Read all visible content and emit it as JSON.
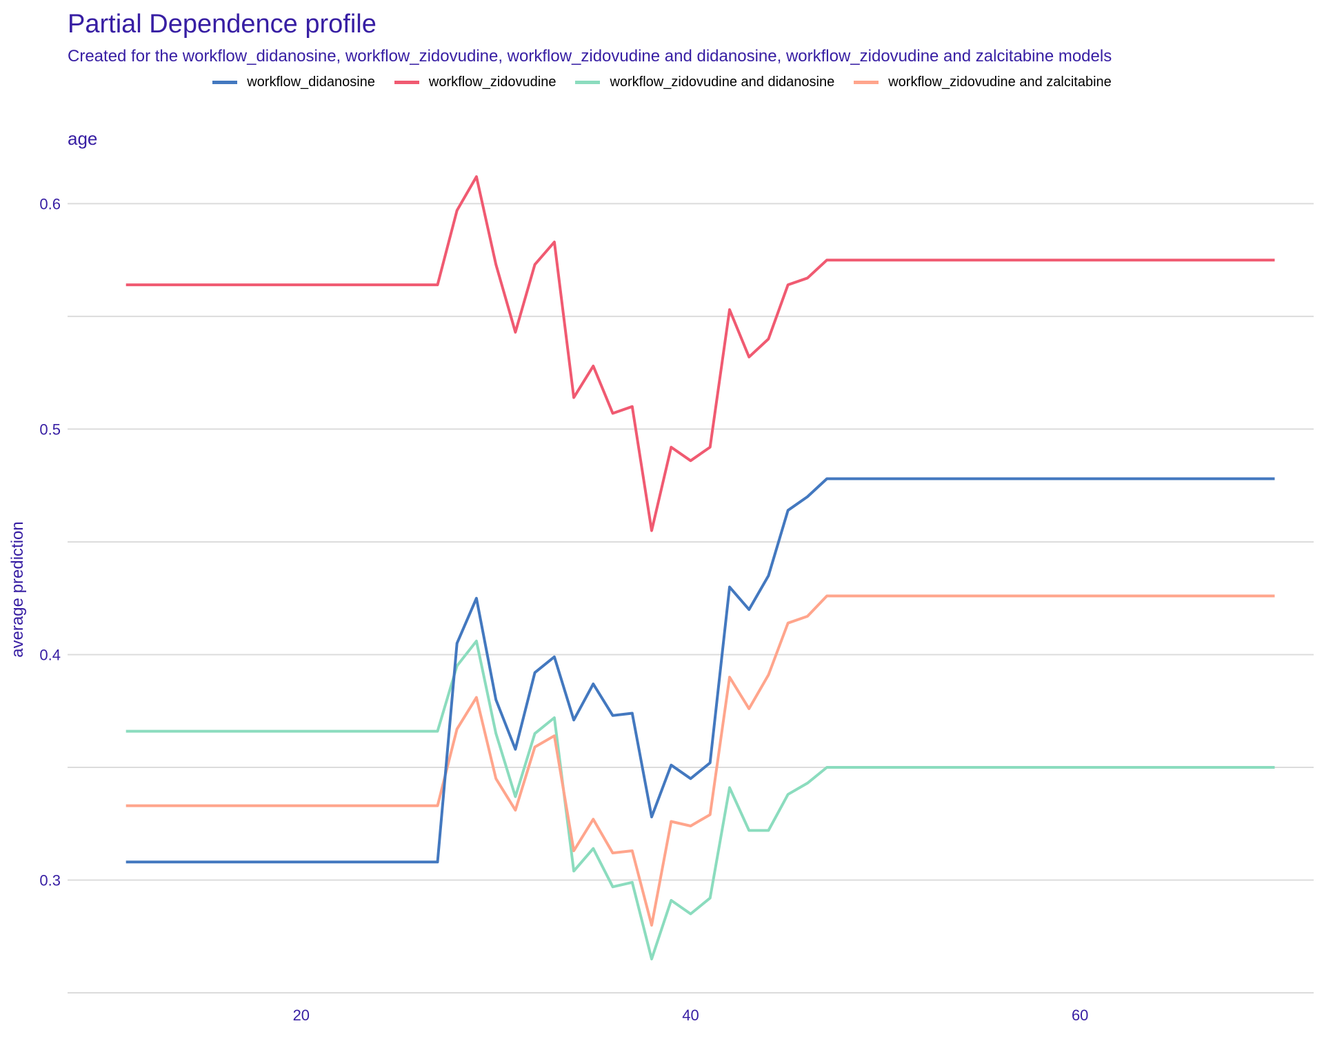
{
  "chart_data": {
    "type": "line",
    "title": "Partial Dependence profile",
    "subtitle": "Created for the workflow_didanosine, workflow_zidovudine, workflow_zidovudine and didanosine, workflow_zidovudine and zalcitabine models",
    "facet_label": "age",
    "xlabel": "",
    "ylabel": "average prediction",
    "xlim": [
      8,
      72
    ],
    "ylim": [
      0.25,
      0.62
    ],
    "x_ticks": [
      20,
      40,
      60
    ],
    "y_ticks": [
      0.3,
      0.4,
      0.5,
      0.6
    ],
    "grid": true,
    "legend_position": "top",
    "x": [
      11,
      27,
      28,
      29,
      30,
      31,
      32,
      33,
      34,
      35,
      36,
      37,
      38,
      39,
      40,
      41,
      42,
      43,
      44,
      45,
      46,
      47,
      70
    ],
    "series": [
      {
        "name": "workflow_didanosine",
        "color": "#4378bf",
        "values": [
          0.308,
          0.308,
          0.405,
          0.425,
          0.38,
          0.358,
          0.392,
          0.399,
          0.371,
          0.387,
          0.373,
          0.374,
          0.328,
          0.351,
          0.345,
          0.352,
          0.43,
          0.42,
          0.435,
          0.464,
          0.47,
          0.478,
          0.478
        ]
      },
      {
        "name": "workflow_zidovudine",
        "color": "#f05a71",
        "values": [
          0.564,
          0.564,
          0.597,
          0.612,
          0.573,
          0.543,
          0.573,
          0.583,
          0.514,
          0.528,
          0.507,
          0.51,
          0.455,
          0.492,
          0.486,
          0.492,
          0.553,
          0.532,
          0.54,
          0.564,
          0.567,
          0.575,
          0.575
        ]
      },
      {
        "name": "workflow_zidovudine and didanosine",
        "color": "#8bdcbe",
        "values": [
          0.366,
          0.366,
          0.395,
          0.406,
          0.365,
          0.337,
          0.365,
          0.372,
          0.304,
          0.314,
          0.297,
          0.299,
          0.265,
          0.291,
          0.285,
          0.292,
          0.341,
          0.322,
          0.322,
          0.338,
          0.343,
          0.35,
          0.35
        ]
      },
      {
        "name": "workflow_zidovudine and zalcitabine",
        "color": "#ffa58c",
        "values": [
          0.333,
          0.333,
          0.367,
          0.381,
          0.345,
          0.331,
          0.359,
          0.364,
          0.313,
          0.327,
          0.312,
          0.313,
          0.28,
          0.326,
          0.324,
          0.329,
          0.39,
          0.376,
          0.391,
          0.414,
          0.417,
          0.426,
          0.426
        ]
      }
    ]
  }
}
